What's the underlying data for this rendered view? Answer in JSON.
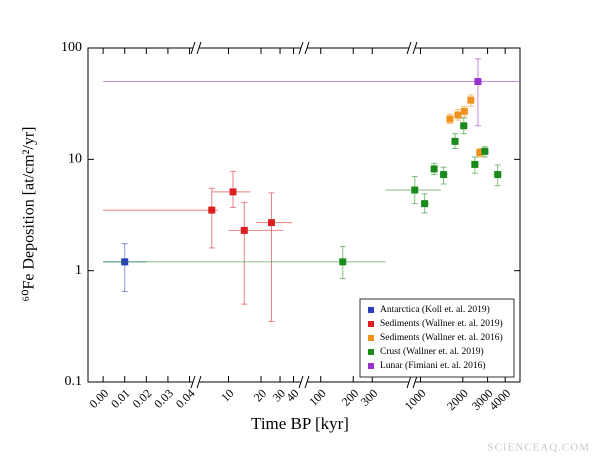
{
  "chart_data": {
    "type": "scatter",
    "xlabel": "Time BP [kyr]",
    "ylabel": "⁶⁰Fe Deposition [at/cm²/yr]",
    "yscale": "log",
    "ylim": [
      0.1,
      100
    ],
    "yticks": [
      0.1,
      1,
      10,
      100
    ],
    "x_segments": [
      {
        "xscale": "linear",
        "xlim": [
          -0.007,
          0.043
        ],
        "xticks": [
          {
            "value": 0,
            "label": "0.00"
          },
          {
            "value": 0.01,
            "label": "0.01"
          },
          {
            "value": 0.02,
            "label": "0.02"
          },
          {
            "value": 0.03,
            "label": "0.03"
          },
          {
            "value": 0.04,
            "label": "0.04"
          }
        ]
      },
      {
        "xscale": "log",
        "xlim": [
          5,
          50
        ],
        "xticks": [
          10,
          20,
          30,
          40
        ]
      },
      {
        "xscale": "log",
        "xlim": [
          70,
          700
        ],
        "xticks": [
          100,
          200,
          300
        ]
      },
      {
        "xscale": "log",
        "xlim": [
          870,
          5100
        ],
        "xticks": [
          1000,
          2000,
          3000,
          4000
        ]
      }
    ],
    "legend": "lower right",
    "annotation": "SCIENCEAQ.COM",
    "series": [
      {
        "name": "Antarctica (Koll et. al. 2019)",
        "color": "#2a3fc0",
        "x": [
          0.01
        ],
        "y": [
          1.2
        ],
        "x_low": [
          0
        ],
        "x_high": [
          0.02
        ],
        "y_low": [
          0.65
        ],
        "y_high": [
          1.75
        ]
      },
      {
        "name": "Sediments (Wallner et. al. 2019)",
        "color": "#dc2020",
        "x": [
          7,
          11,
          14,
          25
        ],
        "y": [
          3.5,
          5.1,
          2.3,
          2.7
        ],
        "x_low": [
          0,
          7,
          10,
          18
        ],
        "x_high": [
          8,
          16,
          32,
          39
        ],
        "y_low": [
          1.6,
          3.7,
          0.5,
          0.35
        ],
        "y_high": [
          5.5,
          7.8,
          4.1,
          5.0
        ]
      },
      {
        "name": "Sediments (Wallner et. al. 2016)",
        "color": "#f0921c",
        "x": [
          1620,
          1845,
          2050,
          2280,
          2640
        ],
        "y": [
          23,
          25,
          27,
          34,
          11.5
        ],
        "x_low": [
          1540,
          1760,
          1950,
          2170,
          2520
        ],
        "x_high": [
          1700,
          1930,
          2150,
          2390,
          2760
        ],
        "y_low": [
          21,
          22.5,
          24,
          30,
          10.5
        ],
        "y_high": [
          25.5,
          28,
          30,
          38,
          12.5
        ]
      },
      {
        "name": "Crust (Wallner et. al. 2019)",
        "color": "#1a8a1a",
        "x": [
          160,
          910,
          1070,
          1250,
          1460,
          1760,
          2030,
          2435,
          2870,
          3540
        ],
        "y": [
          1.2,
          5.3,
          4.0,
          8.2,
          7.3,
          14.5,
          20,
          9,
          11.8,
          7.3
        ],
        "x_low": [
          0,
          400,
          1000,
          1180,
          1370,
          1650,
          1900,
          2300,
          2700,
          3300
        ],
        "x_high": [
          400,
          1400,
          1150,
          1320,
          1560,
          1870,
          2170,
          2600,
          3050,
          3800
        ],
        "y_low": [
          0.85,
          4.0,
          3.3,
          7.3,
          6.0,
          12.5,
          17,
          7.5,
          10.5,
          5.8
        ],
        "y_high": [
          1.65,
          7.0,
          4.9,
          9.2,
          8.5,
          17,
          23.5,
          10.5,
          13,
          8.9
        ]
      },
      {
        "name": "Lunar (Fimiani et. al. 2016)",
        "color": "#9b30d0",
        "x": [
          2560
        ],
        "y": [
          50
        ],
        "x_low": [
          0
        ],
        "x_high": [
          5000
        ],
        "y_low": [
          20
        ],
        "y_high": [
          80
        ]
      }
    ]
  }
}
